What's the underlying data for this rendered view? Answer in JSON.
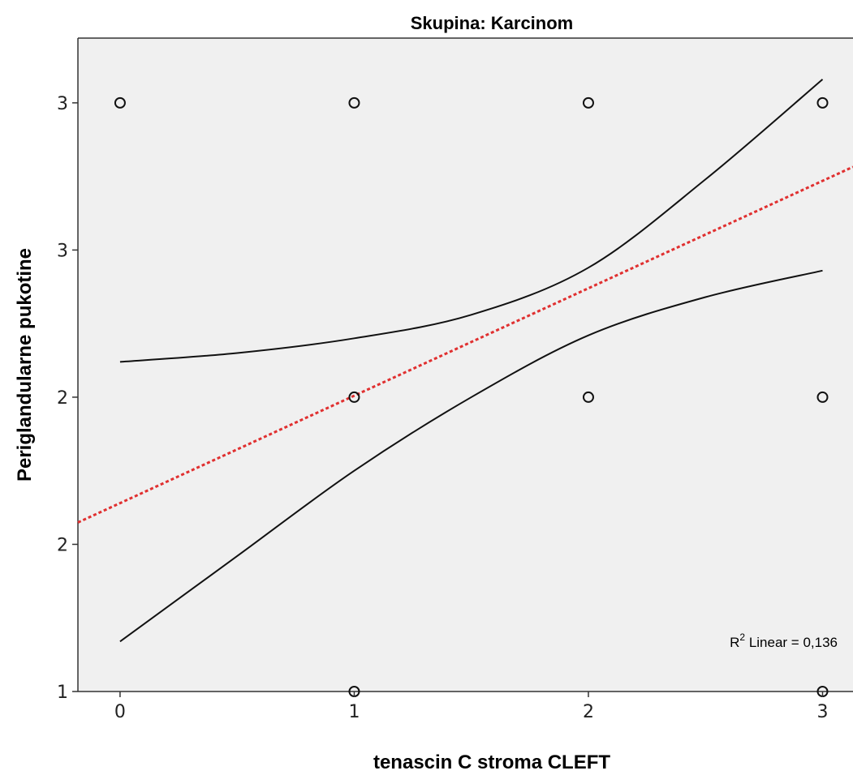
{
  "chart_data": {
    "type": "scatter",
    "title": "Skupina: Karcinom",
    "xlabel": "tenascin C stroma CLEFT",
    "ylabel": "Periglandularne pukotine",
    "x_ticks": [
      0,
      1,
      2,
      3
    ],
    "x_tick_labels": [
      "0",
      "1",
      "2",
      "3"
    ],
    "y_ticks": [
      1.0,
      1.5,
      2.0,
      2.5,
      3.0
    ],
    "y_tick_labels": [
      "1",
      "2",
      "2",
      "3",
      "3"
    ],
    "xlim": [
      -0.18,
      3.13
    ],
    "ylim": [
      1.0,
      3.22
    ],
    "grid": false,
    "points": [
      {
        "x": 0,
        "y": 3.0
      },
      {
        "x": 1,
        "y": 3.0
      },
      {
        "x": 2,
        "y": 3.0
      },
      {
        "x": 3,
        "y": 3.0
      },
      {
        "x": 1,
        "y": 2.0
      },
      {
        "x": 2,
        "y": 2.0
      },
      {
        "x": 3,
        "y": 2.0
      },
      {
        "x": 1,
        "y": 1.0
      },
      {
        "x": 3,
        "y": 1.0
      }
    ],
    "fit_line": {
      "type": "linear",
      "intercept": 1.64,
      "slope": 0.365,
      "x_range": [
        -0.18,
        3.13
      ],
      "color": "#e03030"
    },
    "ci_upper": [
      {
        "x": 0,
        "y": 2.12
      },
      {
        "x": 0.5,
        "y": 2.15
      },
      {
        "x": 1,
        "y": 2.2
      },
      {
        "x": 1.5,
        "y": 2.28
      },
      {
        "x": 2,
        "y": 2.44
      },
      {
        "x": 2.5,
        "y": 2.74
      },
      {
        "x": 3,
        "y": 3.08
      }
    ],
    "ci_lower": [
      {
        "x": 0,
        "y": 1.17
      },
      {
        "x": 0.5,
        "y": 1.46
      },
      {
        "x": 1,
        "y": 1.75
      },
      {
        "x": 1.5,
        "y": 2.0
      },
      {
        "x": 2,
        "y": 2.21
      },
      {
        "x": 2.5,
        "y": 2.34
      },
      {
        "x": 3,
        "y": 2.43
      }
    ],
    "annotation": {
      "prefix": "R",
      "superscript": "2",
      "suffix": " Linear = 0,136"
    }
  }
}
